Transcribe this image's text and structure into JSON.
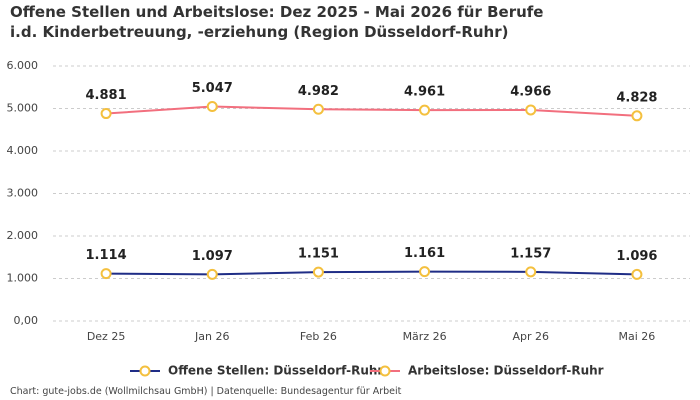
{
  "chart_data": {
    "type": "line",
    "title": "Offene Stellen und Arbeitslose: Dez 2025 - Mai 2026 für Berufe i.d. Kinderbetreuung, -erziehung (Region Düsseldorf-Ruhr)",
    "categories": [
      "Dez 25",
      "Jan 26",
      "Feb 26",
      "März 26",
      "Apr 26",
      "Mai 26"
    ],
    "series": [
      {
        "name": "Offene Stellen: Düsseldorf-Ruhr",
        "color": "#1f2d86",
        "marker_color": "#f4c03e",
        "values": [
          1114,
          1097,
          1151,
          1161,
          1157,
          1096
        ],
        "value_labels": [
          "1.114",
          "1.097",
          "1.151",
          "1.161",
          "1.157",
          "1.096"
        ]
      },
      {
        "name": "Arbeitslose: Düsseldorf-Ruhr",
        "color": "#f26f7e",
        "marker_color": "#f4c03e",
        "values": [
          4881,
          5047,
          4982,
          4961,
          4966,
          4828
        ],
        "value_labels": [
          "4.881",
          "5.047",
          "4.982",
          "4.961",
          "4.966",
          "4.828"
        ]
      }
    ],
    "ylim": [
      0,
      6000
    ],
    "yticks": [
      {
        "value": 0,
        "label": "0,00"
      },
      {
        "value": 1000,
        "label": "1.000"
      },
      {
        "value": 2000,
        "label": "2.000"
      },
      {
        "value": 3000,
        "label": "3.000"
      },
      {
        "value": 4000,
        "label": "4.000"
      },
      {
        "value": 5000,
        "label": "5.000"
      },
      {
        "value": 6000,
        "label": "6.000"
      }
    ],
    "grid": true,
    "footer": "Chart: gute-jobs.de (Wollmilchsau GmbH) | Datenquelle: Bundesagentur für Arbeit"
  }
}
